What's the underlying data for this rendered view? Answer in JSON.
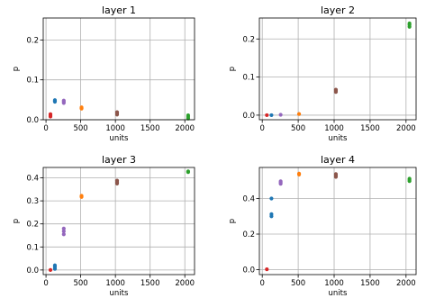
{
  "chart_data": [
    {
      "type": "scatter",
      "title": "layer 1",
      "xlabel": "units",
      "ylabel": "p",
      "xlim": [
        -40,
        2140
      ],
      "ylim": [
        0,
        0.255
      ],
      "xticks": [
        0,
        500,
        1000,
        1500,
        2000
      ],
      "yticks": [
        0.0,
        0.1,
        0.2
      ],
      "ytick_labels": [
        "0.0",
        "0.1",
        "0.2"
      ],
      "grid": true,
      "points": [
        {
          "x": 64,
          "y": 0.008,
          "color": "#d62728"
        },
        {
          "x": 64,
          "y": 0.011,
          "color": "#d62728"
        },
        {
          "x": 64,
          "y": 0.014,
          "color": "#d62728"
        },
        {
          "x": 128,
          "y": 0.045,
          "color": "#1f77b4"
        },
        {
          "x": 128,
          "y": 0.047,
          "color": "#1f77b4"
        },
        {
          "x": 128,
          "y": 0.049,
          "color": "#1f77b4"
        },
        {
          "x": 256,
          "y": 0.042,
          "color": "#9467bd"
        },
        {
          "x": 256,
          "y": 0.045,
          "color": "#9467bd"
        },
        {
          "x": 256,
          "y": 0.048,
          "color": "#9467bd"
        },
        {
          "x": 512,
          "y": 0.028,
          "color": "#ff7f0e"
        },
        {
          "x": 512,
          "y": 0.031,
          "color": "#ff7f0e"
        },
        {
          "x": 1024,
          "y": 0.013,
          "color": "#8c564b"
        },
        {
          "x": 1024,
          "y": 0.016,
          "color": "#8c564b"
        },
        {
          "x": 1024,
          "y": 0.019,
          "color": "#8c564b"
        },
        {
          "x": 2048,
          "y": 0.003,
          "color": "#2ca02c"
        },
        {
          "x": 2048,
          "y": 0.007,
          "color": "#2ca02c"
        },
        {
          "x": 2048,
          "y": 0.011,
          "color": "#2ca02c"
        }
      ]
    },
    {
      "type": "scatter",
      "title": "layer 2",
      "xlabel": "units",
      "ylabel": "p",
      "xlim": [
        -40,
        2140
      ],
      "ylim": [
        -0.012,
        0.255
      ],
      "xticks": [
        0,
        500,
        1000,
        1500,
        2000
      ],
      "yticks": [
        0.0,
        0.1,
        0.2
      ],
      "ytick_labels": [
        "0.0",
        "0.1",
        "0.2"
      ],
      "grid": true,
      "points": [
        {
          "x": 64,
          "y": 0.0,
          "color": "#d62728"
        },
        {
          "x": 128,
          "y": 0.0,
          "color": "#1f77b4"
        },
        {
          "x": 256,
          "y": 0.001,
          "color": "#9467bd"
        },
        {
          "x": 512,
          "y": 0.003,
          "color": "#ff7f0e"
        },
        {
          "x": 1024,
          "y": 0.061,
          "color": "#8c564b"
        },
        {
          "x": 1024,
          "y": 0.064,
          "color": "#8c564b"
        },
        {
          "x": 1024,
          "y": 0.067,
          "color": "#8c564b"
        },
        {
          "x": 2048,
          "y": 0.232,
          "color": "#2ca02c"
        },
        {
          "x": 2048,
          "y": 0.237,
          "color": "#2ca02c"
        },
        {
          "x": 2048,
          "y": 0.241,
          "color": "#2ca02c"
        }
      ]
    },
    {
      "type": "scatter",
      "title": "layer 3",
      "xlabel": "units",
      "ylabel": "p",
      "xlim": [
        -40,
        2140
      ],
      "ylim": [
        -0.02,
        0.445
      ],
      "xticks": [
        0,
        500,
        1000,
        1500,
        2000
      ],
      "yticks": [
        0.0,
        0.1,
        0.2,
        0.3,
        0.4
      ],
      "ytick_labels": [
        "0.0",
        "0.1",
        "0.2",
        "0.3",
        "0.4"
      ],
      "grid": true,
      "points": [
        {
          "x": 64,
          "y": 0.0,
          "color": "#d62728"
        },
        {
          "x": 128,
          "y": 0.005,
          "color": "#1f77b4"
        },
        {
          "x": 128,
          "y": 0.013,
          "color": "#1f77b4"
        },
        {
          "x": 128,
          "y": 0.02,
          "color": "#1f77b4"
        },
        {
          "x": 256,
          "y": 0.155,
          "color": "#9467bd"
        },
        {
          "x": 256,
          "y": 0.168,
          "color": "#9467bd"
        },
        {
          "x": 256,
          "y": 0.18,
          "color": "#9467bd"
        },
        {
          "x": 512,
          "y": 0.317,
          "color": "#ff7f0e"
        },
        {
          "x": 512,
          "y": 0.322,
          "color": "#ff7f0e"
        },
        {
          "x": 1024,
          "y": 0.375,
          "color": "#8c564b"
        },
        {
          "x": 1024,
          "y": 0.382,
          "color": "#8c564b"
        },
        {
          "x": 1024,
          "y": 0.388,
          "color": "#8c564b"
        },
        {
          "x": 2048,
          "y": 0.425,
          "color": "#2ca02c"
        },
        {
          "x": 2048,
          "y": 0.428,
          "color": "#2ca02c"
        }
      ]
    },
    {
      "type": "scatter",
      "title": "layer 4",
      "xlabel": "units",
      "ylabel": "p",
      "xlim": [
        -40,
        2140
      ],
      "ylim": [
        -0.028,
        0.575
      ],
      "xticks": [
        0,
        500,
        1000,
        1500,
        2000
      ],
      "yticks": [
        0.0,
        0.2,
        0.4
      ],
      "ytick_labels": [
        "0.0",
        "0.2",
        "0.4"
      ],
      "grid": true,
      "points": [
        {
          "x": 64,
          "y": 0.002,
          "color": "#d62728"
        },
        {
          "x": 128,
          "y": 0.3,
          "color": "#1f77b4"
        },
        {
          "x": 128,
          "y": 0.312,
          "color": "#1f77b4"
        },
        {
          "x": 128,
          "y": 0.4,
          "color": "#1f77b4"
        },
        {
          "x": 256,
          "y": 0.483,
          "color": "#9467bd"
        },
        {
          "x": 256,
          "y": 0.49,
          "color": "#9467bd"
        },
        {
          "x": 256,
          "y": 0.497,
          "color": "#9467bd"
        },
        {
          "x": 512,
          "y": 0.535,
          "color": "#ff7f0e"
        },
        {
          "x": 512,
          "y": 0.54,
          "color": "#ff7f0e"
        },
        {
          "x": 1024,
          "y": 0.522,
          "color": "#8c564b"
        },
        {
          "x": 1024,
          "y": 0.53,
          "color": "#8c564b"
        },
        {
          "x": 1024,
          "y": 0.538,
          "color": "#8c564b"
        },
        {
          "x": 2048,
          "y": 0.498,
          "color": "#2ca02c"
        },
        {
          "x": 2048,
          "y": 0.505,
          "color": "#2ca02c"
        },
        {
          "x": 2048,
          "y": 0.512,
          "color": "#2ca02c"
        }
      ]
    }
  ]
}
